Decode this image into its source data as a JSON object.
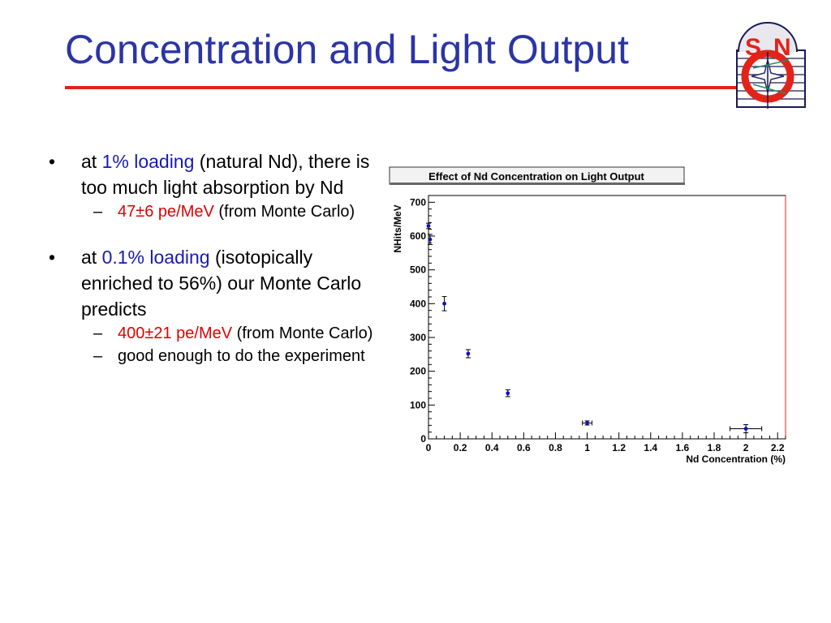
{
  "slide": {
    "title": "Concentration and Light Output",
    "logo_text": "SNO"
  },
  "bullets": [
    {
      "pre": "at ",
      "highlight": "1% loading",
      "rest": " (natural Nd), there is too much light absorption by Nd",
      "subs": [
        {
          "highlight": "47±6 pe/MeV",
          "rest": " (from Monte Carlo)"
        }
      ]
    },
    {
      "pre": "at ",
      "highlight": "0.1% loading",
      "rest": " (isotopically enriched to 56%) our Monte Carlo predicts",
      "subs": [
        {
          "highlight": "400±21 pe/MeV",
          "rest": " (from Monte Carlo)"
        },
        {
          "highlight": "",
          "rest": "good enough to do the experiment"
        }
      ]
    }
  ],
  "symbols": {
    "bullet": "•",
    "dash": "–"
  },
  "colors": {
    "title": "#2b35a6",
    "rule": "#e2231a",
    "highlight_blue": "#1a1ab3",
    "highlight_red": "#e10000",
    "marker": "#1010c0"
  },
  "chart_data": {
    "type": "scatter",
    "title": "Effect of Nd Concentration on Light Output",
    "xlabel": "Nd Concentration (%)",
    "ylabel": "NHits/MeV",
    "xlim": [
      0,
      2.25
    ],
    "ylim": [
      0,
      720
    ],
    "xticks": [
      "0",
      "0.2",
      "0.4",
      "0.6",
      "0.8",
      "1",
      "1.2",
      "1.4",
      "1.6",
      "1.8",
      "2",
      "2.2"
    ],
    "yticks": [
      "0",
      "100",
      "200",
      "300",
      "400",
      "500",
      "600",
      "700"
    ],
    "points": [
      {
        "x": 0.0,
        "y": 630,
        "yerr": 8,
        "xerr": 0
      },
      {
        "x": 0.01,
        "y": 590,
        "yerr": 15,
        "xerr": 0
      },
      {
        "x": 0.1,
        "y": 400,
        "yerr": 21,
        "xerr": 0
      },
      {
        "x": 0.25,
        "y": 252,
        "yerr": 12,
        "xerr": 0
      },
      {
        "x": 0.5,
        "y": 135,
        "yerr": 10,
        "xerr": 0
      },
      {
        "x": 1.0,
        "y": 47,
        "yerr": 6,
        "xerr": 0.03
      },
      {
        "x": 2.0,
        "y": 30,
        "yerr": 12,
        "xerr": 0.1
      }
    ]
  }
}
